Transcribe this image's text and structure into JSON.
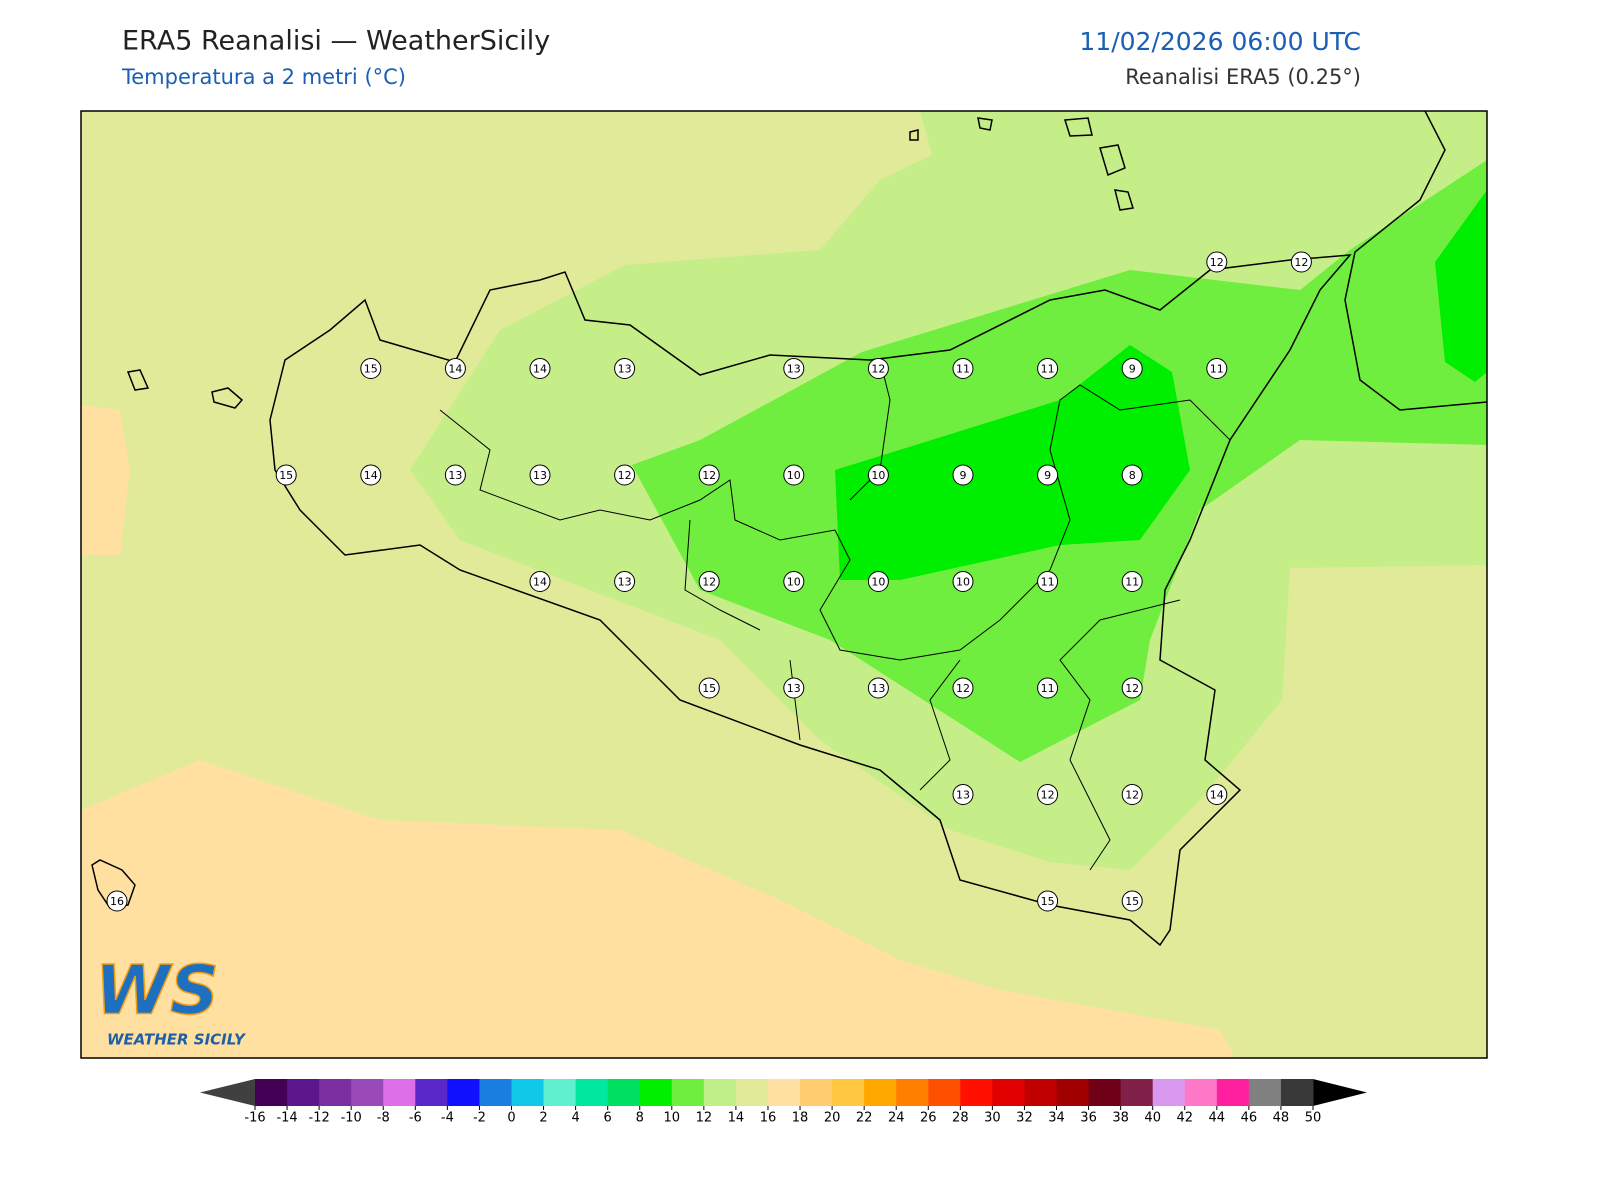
{
  "header": {
    "title": "ERA5 Reanalisi — WeatherSicily",
    "subtitle": "Temperatura a 2 metri (°C)",
    "datetime": "11/02/2026 06:00 UTC",
    "source": "Reanalisi ERA5 (0.25°)"
  },
  "map": {
    "grid": [
      [
        null,
        null,
        null,
        null,
        null,
        null,
        null,
        null,
        null,
        null,
        null,
        null,
        null,
        12,
        12
      ],
      [
        null,
        null,
        null,
        15,
        14,
        14,
        13,
        null,
        13,
        12,
        11,
        11,
        9,
        11,
        null
      ],
      [
        null,
        null,
        15,
        14,
        13,
        13,
        12,
        12,
        10,
        10,
        9,
        9,
        8,
        null,
        null
      ],
      [
        null,
        null,
        null,
        null,
        null,
        14,
        13,
        12,
        10,
        10,
        10,
        11,
        11,
        null,
        null
      ],
      [
        null,
        null,
        null,
        null,
        null,
        null,
        null,
        15,
        13,
        13,
        12,
        11,
        12,
        null,
        null
      ],
      [
        null,
        null,
        null,
        null,
        null,
        null,
        null,
        null,
        null,
        null,
        13,
        12,
        12,
        14,
        null
      ],
      [
        16,
        null,
        null,
        null,
        null,
        null,
        null,
        null,
        null,
        null,
        null,
        15,
        15,
        null,
        null
      ]
    ]
  },
  "logo": {
    "text": "WS",
    "caption": "WEATHER SICILY"
  },
  "colorbar": {
    "ticks": [
      -16,
      -14,
      -12,
      -10,
      -8,
      -6,
      -4,
      -2,
      0,
      2,
      4,
      6,
      8,
      10,
      12,
      14,
      16,
      18,
      20,
      22,
      24,
      26,
      28,
      30,
      32,
      34,
      36,
      38,
      40,
      42,
      44,
      46,
      48,
      50
    ],
    "colors": [
      "#440055",
      "#5a168a",
      "#7a2ea0",
      "#9a4ab8",
      "#dd70e8",
      "#5a28c8",
      "#1010ff",
      "#1a7ee0",
      "#10c8e8",
      "#60f0d0",
      "#00e8a0",
      "#00e060",
      "#00f000",
      "#70ee40",
      "#c0ee88",
      "#e0ea98",
      "#ffe0a0",
      "#ffcc70",
      "#ffc840",
      "#ffa800",
      "#ff8000",
      "#ff5000",
      "#ff1000",
      "#e00000",
      "#c00000",
      "#a00000",
      "#700018",
      "#802048",
      "#d898f0",
      "#ff78c8",
      "#ff20a0",
      "#808080",
      "#383838"
    ],
    "under_color": "#404040",
    "over_color": "#000000"
  }
}
